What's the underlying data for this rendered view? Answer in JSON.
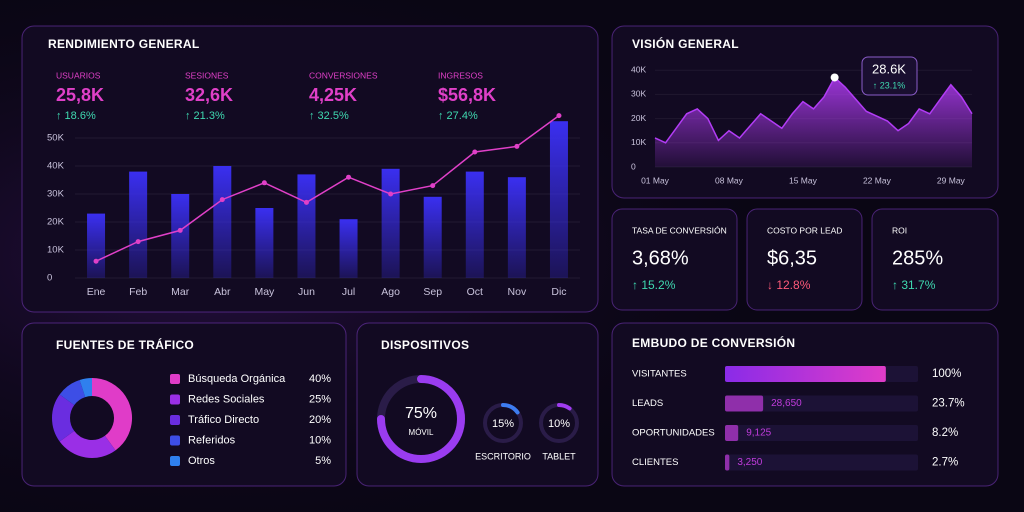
{
  "rendimiento": {
    "kpis": [
      {
        "label": "USUARIOS",
        "value": "25,8K",
        "change": "↑ 18.6%"
      },
      {
        "label": "SESIONES",
        "value": "32,6K",
        "change": "↑ 21.3%"
      },
      {
        "label": "CONVERSIONES",
        "value": "4,25K",
        "change": "↑ 32.5%"
      },
      {
        "label": "INGRESOS",
        "value": "$56,8K",
        "change": "↑ 27.4%"
      }
    ]
  },
  "stats": [
    {
      "label": "TASA DE CONVERSIÓN",
      "value": "3,68%",
      "change": "↑ 15.2%",
      "trend": "up"
    },
    {
      "label": "COSTO POR LEAD",
      "value": "$6,35",
      "change": "↓ 12.8%",
      "trend": "down"
    },
    {
      "label": "ROI",
      "value": "285%",
      "change": "↑ 31.7%",
      "trend": "up"
    }
  ],
  "chart_data": [
    {
      "type": "bar",
      "title": "RENDIMIENTO GENERAL",
      "categories": [
        "Ene",
        "Feb",
        "Mar",
        "Abr",
        "May",
        "Jun",
        "Jul",
        "Ago",
        "Sep",
        "Oct",
        "Nov",
        "Dic"
      ],
      "series": [
        {
          "type": "bar",
          "color": "#3a2ff0",
          "values": [
            23,
            38,
            30,
            40,
            25,
            37,
            21,
            39,
            29,
            38,
            36,
            56
          ]
        },
        {
          "type": "line",
          "color": "#e040c8",
          "values": [
            6,
            13,
            17,
            28,
            34,
            27,
            36,
            30,
            33,
            45,
            47,
            58
          ]
        }
      ],
      "ylim": [
        0,
        58
      ],
      "yticks": [
        0,
        {
          "value": 10,
          "label": "10K"
        },
        {
          "value": 20,
          "label": "20K"
        },
        {
          "value": 30,
          "label": "30K"
        },
        {
          "value": 40,
          "label": "40K"
        },
        {
          "value": 50,
          "label": "50K"
        }
      ],
      "grid": true
    },
    {
      "type": "area",
      "title": "VISIÓN GENERAL",
      "categories": [
        "01 May",
        null,
        null,
        null,
        null,
        null,
        null,
        "08 May",
        null,
        null,
        null,
        null,
        null,
        null,
        "15 May",
        null,
        null,
        null,
        null,
        null,
        null,
        "22 May",
        null,
        null,
        null,
        null,
        null,
        null,
        "29 May",
        null,
        null
      ],
      "values": [
        12,
        10,
        16,
        22,
        24,
        20,
        11,
        15,
        12,
        17,
        22,
        19,
        16,
        22,
        27,
        24,
        29,
        37,
        33,
        28,
        23,
        21,
        19,
        15,
        18,
        24,
        22,
        28,
        34,
        29,
        22
      ],
      "color": "#b23cf5",
      "ylim": [
        0,
        40
      ],
      "yticks": [
        0,
        {
          "value": 10,
          "label": "10K"
        },
        {
          "value": 20,
          "label": "20K"
        },
        {
          "value": 30,
          "label": "30K"
        },
        {
          "value": 40,
          "label": "40K"
        }
      ],
      "annotation": {
        "value": "28.6K",
        "change": "↑ 23.1%"
      }
    },
    {
      "type": "donut",
      "title": "FUENTES DE TRÁFICO",
      "categories": [
        "Búsqueda Orgánica",
        "Redes Sociales",
        "Tráfico Directo",
        "Referidos",
        "Otros"
      ],
      "values": [
        40,
        25,
        20,
        10,
        5
      ],
      "value_labels": [
        "40%",
        "25%",
        "20%",
        "10%",
        "5%"
      ],
      "colors": [
        "#e03cc8",
        "#9a2fe6",
        "#6a2de0",
        "#3d4ee6",
        "#2f80ee"
      ]
    },
    {
      "type": "gauge",
      "title": "DISPOSITIVOS",
      "categories": [
        "MÓVIL",
        "ESCRITORIO",
        "TABLET"
      ],
      "values": [
        75,
        15,
        10
      ],
      "value_labels": [
        "75%",
        "15%",
        "10%"
      ],
      "colors": [
        "#9a3cf0",
        "#3d7cf0",
        "#a03cf0"
      ]
    },
    {
      "type": "funnel",
      "title": "EMBUDO DE CONVERSIÓN",
      "categories": [
        "VISITANTES",
        "LEADS",
        "OPORTUNIDADES",
        "CLIENTES"
      ],
      "values": [
        100,
        23.7,
        8.2,
        2.7
      ],
      "value_labels": [
        "100%",
        "23.7%",
        "8.2%",
        "2.7%"
      ],
      "counts": [
        null,
        28650,
        9125,
        3250
      ],
      "count_labels": [
        null,
        "28,650",
        "9,125",
        "3,250"
      ],
      "xlim": [
        0,
        120
      ],
      "color": "#c03cdc"
    }
  ]
}
